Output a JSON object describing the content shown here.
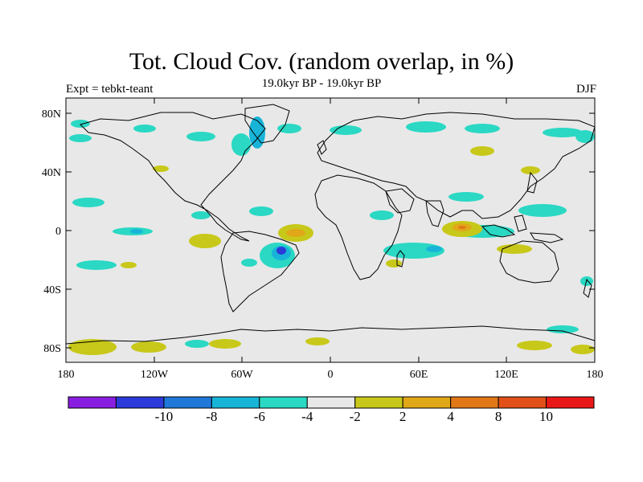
{
  "title": "Tot. Cloud Cov. (random overlap, in %)",
  "subtitle": "19.0kyr BP - 19.0kyr BP",
  "left_label": "Expt = tebkt-teant",
  "right_label": "DJF",
  "y_ticks": [
    "80N",
    "40N",
    "0",
    "40S",
    "80S"
  ],
  "x_ticks": [
    "180",
    "120W",
    "60W",
    "0",
    "60E",
    "120E",
    "180"
  ],
  "colorbar": {
    "colors": [
      "#8a1ee0",
      "#2b3ad8",
      "#1f78d8",
      "#18b4d8",
      "#2ad8c4",
      "#e8e8e8",
      "#c8c81a",
      "#e0a818",
      "#e07818",
      "#e05018",
      "#e81818"
    ],
    "labels": [
      "-10",
      "-8",
      "-6",
      "-4",
      "-2",
      "2",
      "4",
      "8",
      "10"
    ]
  },
  "colors": {
    "ocean": "#e8e8e8",
    "coast": "#000000"
  }
}
